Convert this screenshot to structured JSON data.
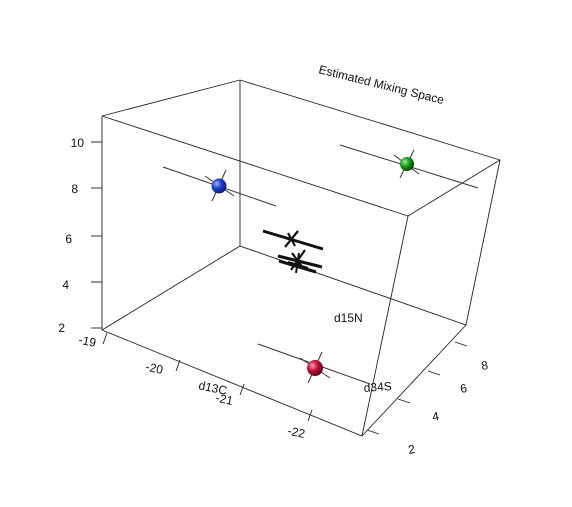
{
  "chart_data": {
    "type": "scatter",
    "title": "Estimated Mixing Space",
    "axes": {
      "x": {
        "label": "d13C",
        "ticks": [
          "-19",
          "-20",
          "-21",
          "-22"
        ]
      },
      "y": {
        "label": "d15N",
        "ticks": [
          "2",
          "4",
          "6",
          "8",
          "10"
        ]
      },
      "z": {
        "label": "d34S",
        "ticks": [
          "2",
          "4",
          "6",
          "8"
        ]
      }
    },
    "points": [
      {
        "d13C": -19.3,
        "d15N": 10.6,
        "d34S": 8.0,
        "color": "#1f3fd8"
      },
      {
        "d13C": -22.6,
        "d15N": 10.8,
        "d34S": 8.2,
        "color": "#16a516"
      },
      {
        "d13C": -21.9,
        "d15N": 2.4,
        "d34S": 2.5,
        "color": "#c8103e"
      }
    ],
    "consumers": [
      {
        "d13C": -21.1,
        "d15N": 6.3,
        "d34S": 5.5
      },
      {
        "d13C": -21.2,
        "d15N": 5.3,
        "d34S": 5.2
      },
      {
        "d13C": -21.4,
        "d15N": 5.0,
        "d34S": 5.4
      }
    ],
    "grid": false
  }
}
